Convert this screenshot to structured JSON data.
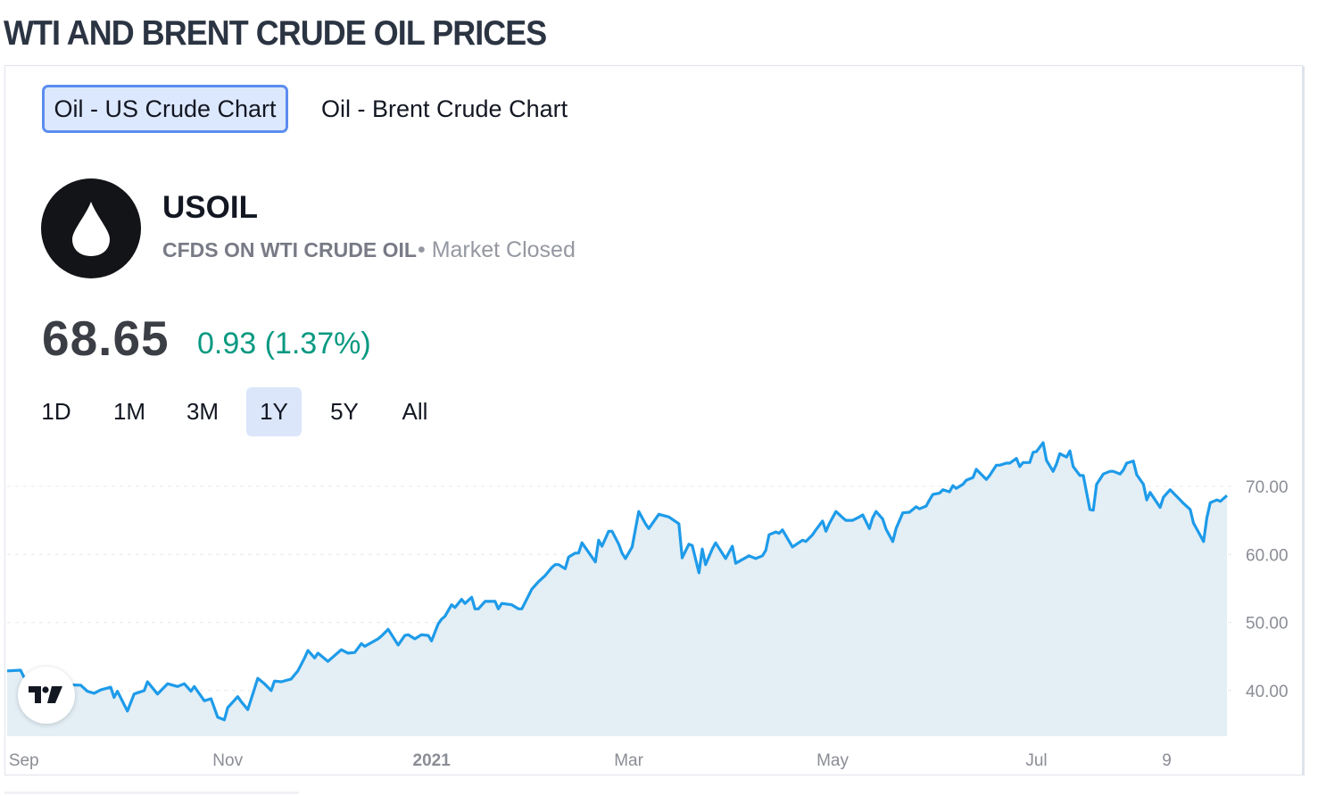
{
  "page": {
    "title": "WTI AND BRENT CRUDE OIL PRICES"
  },
  "tabs": [
    {
      "label": "Oil - US Crude Chart",
      "active": true
    },
    {
      "label": "Oil - Brent Crude Chart",
      "active": false
    }
  ],
  "symbol": {
    "icon": "oil-drop-icon",
    "name": "USOIL",
    "description": "CFDS ON WTI CRUDE OIL",
    "status": "• Market Closed",
    "price": "68.65",
    "change": "0.93 (1.37%)"
  },
  "ranges": [
    {
      "label": "1D"
    },
    {
      "label": "1M"
    },
    {
      "label": "3M"
    },
    {
      "label": "1Y",
      "active": true
    },
    {
      "label": "5Y"
    },
    {
      "label": "All"
    }
  ],
  "colors": {
    "line": "#1e9be9",
    "area": "#e3eef5",
    "positive": "#089981",
    "accent": "#5b8def"
  },
  "chart_data": {
    "type": "area",
    "title": "",
    "xlabel": "",
    "ylabel": "",
    "xlim": [
      "2020-08-27",
      "2021-08-27"
    ],
    "ylim": [
      33.3,
      80
    ],
    "grid": {
      "horizontal": true,
      "vertical": false
    },
    "yaxis_position": "right",
    "yticks": [
      {
        "value": 70,
        "label": "70.00"
      },
      {
        "value": 60,
        "label": "60.00"
      },
      {
        "value": 50,
        "label": "50.00"
      },
      {
        "value": 40,
        "label": "40.00"
      }
    ],
    "xticks": [
      {
        "date": "2020-09-01",
        "label": "Sep",
        "bold": false
      },
      {
        "date": "2020-11-01",
        "label": "Nov",
        "bold": false
      },
      {
        "date": "2021-01-01",
        "label": "2021",
        "bold": true
      },
      {
        "date": "2021-03-01",
        "label": "Mar",
        "bold": false
      },
      {
        "date": "2021-05-01",
        "label": "May",
        "bold": false
      },
      {
        "date": "2021-07-01",
        "label": "Jul",
        "bold": false
      },
      {
        "date": "2021-08-09",
        "label": "9",
        "bold": false
      }
    ],
    "series": [
      {
        "points": [
          [
            "2020-08-27",
            42.9
          ],
          [
            "2020-08-31",
            43.0
          ],
          [
            "2020-09-01",
            42.0
          ],
          [
            "2020-09-10",
            40.9
          ],
          [
            "2020-09-18",
            40.8
          ],
          [
            "2020-09-20",
            39.9
          ],
          [
            "2020-09-22",
            39.6
          ],
          [
            "2020-09-24",
            40.1
          ],
          [
            "2020-09-27",
            40.5
          ],
          [
            "2020-09-28",
            39.0
          ],
          [
            "2020-09-29",
            39.9
          ],
          [
            "2020-10-02",
            37.0
          ],
          [
            "2020-10-04",
            39.5
          ],
          [
            "2020-10-07",
            40.0
          ],
          [
            "2020-10-08",
            41.3
          ],
          [
            "2020-10-11",
            39.5
          ],
          [
            "2020-10-14",
            41.0
          ],
          [
            "2020-10-17",
            40.6
          ],
          [
            "2020-10-19",
            41.0
          ],
          [
            "2020-10-21",
            39.9
          ],
          [
            "2020-10-22",
            40.6
          ],
          [
            "2020-10-25",
            38.5
          ],
          [
            "2020-10-27",
            38.8
          ],
          [
            "2020-10-29",
            36.1
          ],
          [
            "2020-10-31",
            35.7
          ],
          [
            "2020-11-01",
            37.5
          ],
          [
            "2020-11-04",
            39.1
          ],
          [
            "2020-11-05",
            38.4
          ],
          [
            "2020-11-07",
            37.2
          ],
          [
            "2020-11-10",
            41.8
          ],
          [
            "2020-11-12",
            41.0
          ],
          [
            "2020-11-14",
            40.0
          ],
          [
            "2020-11-15",
            41.4
          ],
          [
            "2020-11-17",
            41.3
          ],
          [
            "2020-11-20",
            41.7
          ],
          [
            "2020-11-22",
            42.9
          ],
          [
            "2020-11-24",
            44.8
          ],
          [
            "2020-11-25",
            45.9
          ],
          [
            "2020-11-27",
            44.8
          ],
          [
            "2020-11-28",
            45.5
          ],
          [
            "2020-12-01",
            44.3
          ],
          [
            "2020-12-05",
            46.0
          ],
          [
            "2020-12-07",
            45.5
          ],
          [
            "2020-12-09",
            45.6
          ],
          [
            "2020-12-11",
            46.9
          ],
          [
            "2020-12-12",
            46.5
          ],
          [
            "2020-12-16",
            47.6
          ],
          [
            "2020-12-17",
            48.0
          ],
          [
            "2020-12-19",
            49.0
          ],
          [
            "2020-12-22",
            46.7
          ],
          [
            "2020-12-24",
            48.1
          ],
          [
            "2020-12-25",
            48.2
          ],
          [
            "2020-12-27",
            47.6
          ],
          [
            "2020-12-29",
            48.2
          ],
          [
            "2020-12-31",
            48.1
          ],
          [
            "2021-01-01",
            47.3
          ],
          [
            "2021-01-03",
            49.8
          ],
          [
            "2021-01-04",
            50.5
          ],
          [
            "2021-01-05",
            50.9
          ],
          [
            "2021-01-07",
            52.6
          ],
          [
            "2021-01-08",
            52.2
          ],
          [
            "2021-01-10",
            53.4
          ],
          [
            "2021-01-11",
            52.8
          ],
          [
            "2021-01-13",
            53.7
          ],
          [
            "2021-01-14",
            52.0
          ],
          [
            "2021-01-15",
            52.0
          ],
          [
            "2021-01-17",
            53.1
          ],
          [
            "2021-01-20",
            53.1
          ],
          [
            "2021-01-21",
            52.0
          ],
          [
            "2021-01-22",
            52.8
          ],
          [
            "2021-01-25",
            52.6
          ],
          [
            "2021-01-27",
            52.0
          ],
          [
            "2021-01-28",
            52.0
          ],
          [
            "2021-01-31",
            54.9
          ],
          [
            "2021-02-02",
            56.0
          ],
          [
            "2021-02-04",
            56.9
          ],
          [
            "2021-02-06",
            58.1
          ],
          [
            "2021-02-07",
            58.5
          ],
          [
            "2021-02-08",
            58.5
          ],
          [
            "2021-02-10",
            57.9
          ],
          [
            "2021-02-11",
            59.6
          ],
          [
            "2021-02-13",
            60.2
          ],
          [
            "2021-02-14",
            60.2
          ],
          [
            "2021-02-15",
            61.7
          ],
          [
            "2021-02-19",
            58.9
          ],
          [
            "2021-02-20",
            62.1
          ],
          [
            "2021-02-21",
            61.2
          ],
          [
            "2021-02-23",
            63.4
          ],
          [
            "2021-02-24",
            63.4
          ],
          [
            "2021-02-26",
            61.5
          ],
          [
            "2021-02-27",
            60.2
          ],
          [
            "2021-02-28",
            59.4
          ],
          [
            "2021-03-02",
            61.1
          ],
          [
            "2021-03-04",
            66.3
          ],
          [
            "2021-03-06",
            64.5
          ],
          [
            "2021-03-07",
            63.8
          ],
          [
            "2021-03-10",
            65.9
          ],
          [
            "2021-03-13",
            65.5
          ],
          [
            "2021-03-16",
            64.5
          ],
          [
            "2021-03-17",
            59.5
          ],
          [
            "2021-03-19",
            61.5
          ],
          [
            "2021-03-20",
            61.3
          ],
          [
            "2021-03-22",
            57.3
          ],
          [
            "2021-03-23",
            60.8
          ],
          [
            "2021-03-24",
            58.5
          ],
          [
            "2021-03-26",
            60.8
          ],
          [
            "2021-03-27",
            61.7
          ],
          [
            "2021-03-30",
            59.4
          ],
          [
            "2021-04-01",
            61.2
          ],
          [
            "2021-04-02",
            58.7
          ],
          [
            "2021-04-06",
            59.8
          ],
          [
            "2021-04-08",
            59.4
          ],
          [
            "2021-04-10",
            59.8
          ],
          [
            "2021-04-11",
            60.6
          ],
          [
            "2021-04-12",
            62.9
          ],
          [
            "2021-04-14",
            63.3
          ],
          [
            "2021-04-15",
            63.1
          ],
          [
            "2021-04-16",
            63.6
          ],
          [
            "2021-04-19",
            61.1
          ],
          [
            "2021-04-22",
            62.1
          ],
          [
            "2021-04-23",
            61.9
          ],
          [
            "2021-04-25",
            62.9
          ],
          [
            "2021-04-26",
            63.6
          ],
          [
            "2021-04-28",
            64.9
          ],
          [
            "2021-04-29",
            63.4
          ],
          [
            "2021-04-30",
            64.5
          ],
          [
            "2021-05-02",
            66.3
          ],
          [
            "2021-05-04",
            65.4
          ],
          [
            "2021-05-05",
            65.0
          ],
          [
            "2021-05-07",
            65.0
          ],
          [
            "2021-05-09",
            65.5
          ],
          [
            "2021-05-10",
            65.8
          ],
          [
            "2021-05-12",
            63.8
          ],
          [
            "2021-05-13",
            65.4
          ],
          [
            "2021-05-14",
            66.3
          ],
          [
            "2021-05-16",
            65.2
          ],
          [
            "2021-05-17",
            63.7
          ],
          [
            "2021-05-19",
            61.9
          ],
          [
            "2021-05-20",
            63.8
          ],
          [
            "2021-05-22",
            66.1
          ],
          [
            "2021-05-24",
            66.2
          ],
          [
            "2021-05-26",
            67.0
          ],
          [
            "2021-05-27",
            66.7
          ],
          [
            "2021-05-29",
            67.1
          ],
          [
            "2021-05-30",
            68.0
          ],
          [
            "2021-05-31",
            68.8
          ],
          [
            "2021-06-02",
            69.0
          ],
          [
            "2021-06-03",
            69.5
          ],
          [
            "2021-06-05",
            69.2
          ],
          [
            "2021-06-06",
            70.1
          ],
          [
            "2021-06-07",
            69.7
          ],
          [
            "2021-06-09",
            70.3
          ],
          [
            "2021-06-10",
            70.9
          ],
          [
            "2021-06-12",
            71.3
          ],
          [
            "2021-06-13",
            72.5
          ],
          [
            "2021-06-16",
            71.0
          ],
          [
            "2021-06-17",
            71.6
          ],
          [
            "2021-06-19",
            73.1
          ],
          [
            "2021-06-20",
            73.1
          ],
          [
            "2021-06-22",
            73.4
          ],
          [
            "2021-06-23",
            73.4
          ],
          [
            "2021-06-25",
            74.1
          ],
          [
            "2021-06-26",
            72.9
          ],
          [
            "2021-06-27",
            73.5
          ],
          [
            "2021-06-29",
            73.5
          ],
          [
            "2021-06-30",
            75.0
          ],
          [
            "2021-07-01",
            75.1
          ],
          [
            "2021-07-03",
            76.4
          ],
          [
            "2021-07-04",
            73.8
          ],
          [
            "2021-07-06",
            72.2
          ],
          [
            "2021-07-07",
            73.3
          ],
          [
            "2021-07-08",
            74.8
          ],
          [
            "2021-07-10",
            74.3
          ],
          [
            "2021-07-11",
            75.2
          ],
          [
            "2021-07-12",
            72.9
          ],
          [
            "2021-07-14",
            71.6
          ],
          [
            "2021-07-15",
            71.6
          ],
          [
            "2021-07-17",
            66.6
          ],
          [
            "2021-07-18",
            66.5
          ],
          [
            "2021-07-19",
            70.3
          ],
          [
            "2021-07-21",
            71.8
          ],
          [
            "2021-07-23",
            72.2
          ],
          [
            "2021-07-24",
            72.2
          ],
          [
            "2021-07-26",
            71.8
          ],
          [
            "2021-07-27",
            72.4
          ],
          [
            "2021-07-28",
            73.4
          ],
          [
            "2021-07-30",
            73.7
          ],
          [
            "2021-07-31",
            71.7
          ],
          [
            "2021-08-02",
            70.3
          ],
          [
            "2021-08-03",
            68.0
          ],
          [
            "2021-08-04",
            69.1
          ],
          [
            "2021-08-07",
            66.9
          ],
          [
            "2021-08-08",
            68.4
          ],
          [
            "2021-08-10",
            69.5
          ],
          [
            "2021-08-11",
            69.0
          ],
          [
            "2021-08-13",
            68.0
          ],
          [
            "2021-08-14",
            67.5
          ],
          [
            "2021-08-16",
            66.6
          ],
          [
            "2021-08-17",
            64.6
          ],
          [
            "2021-08-18",
            63.7
          ],
          [
            "2021-08-20",
            61.9
          ],
          [
            "2021-08-21",
            65.4
          ],
          [
            "2021-08-22",
            67.6
          ],
          [
            "2021-08-24",
            68.0
          ],
          [
            "2021-08-25",
            67.8
          ],
          [
            "2021-08-27",
            68.65
          ]
        ]
      }
    ]
  }
}
